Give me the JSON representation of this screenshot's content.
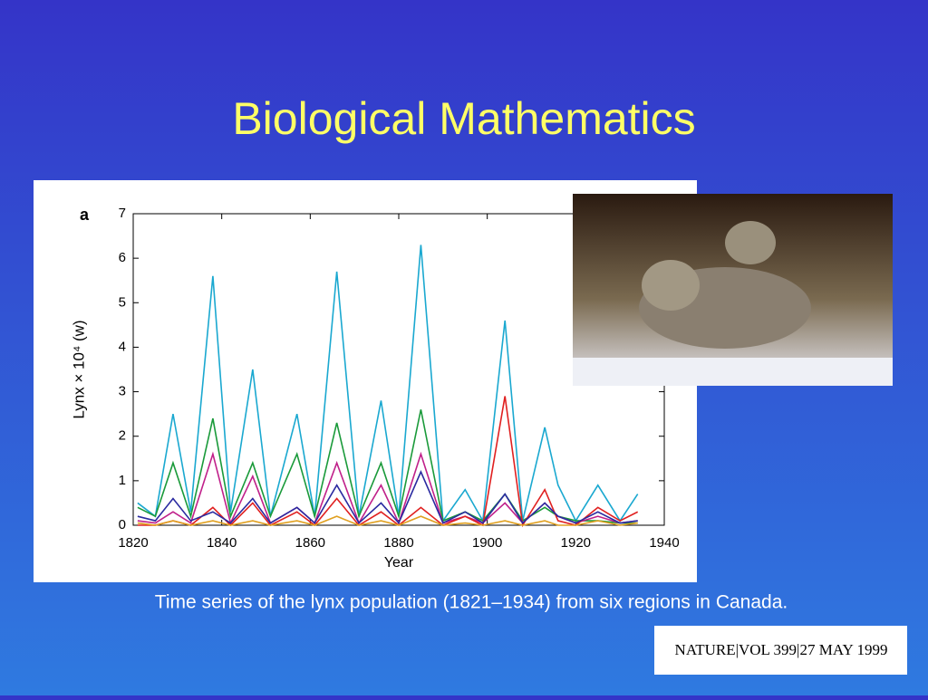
{
  "title": "Biological Mathematics",
  "chart_data": {
    "type": "line",
    "panel_label": "a",
    "y_label": "Lynx × 10⁴ (w)",
    "x_label": "Year",
    "x": [
      1821,
      1825,
      1829,
      1833,
      1838,
      1842,
      1847,
      1851,
      1857,
      1861,
      1866,
      1871,
      1876,
      1880,
      1885,
      1890,
      1895,
      1899,
      1904,
      1908,
      1913,
      1916,
      1920,
      1925,
      1930,
      1934
    ],
    "series": [
      {
        "color": "#1aa8d0",
        "values": [
          0.5,
          0.2,
          2.5,
          0.3,
          5.6,
          0.3,
          3.5,
          0.2,
          2.5,
          0.2,
          5.7,
          0.2,
          2.8,
          0.2,
          6.3,
          0.1,
          0.8,
          0.1,
          4.6,
          0.1,
          2.2,
          0.9,
          0.1,
          0.9,
          0.1,
          0.7
        ]
      },
      {
        "color": "#1a9a3a",
        "values": [
          0.4,
          0.2,
          1.4,
          0.2,
          2.4,
          0.2,
          1.4,
          0.2,
          1.6,
          0.2,
          2.3,
          0.2,
          1.4,
          0.2,
          2.6,
          0.1,
          0.3,
          0.1,
          0.7,
          0.1,
          0.4,
          0.2,
          0.1,
          0.1,
          0.05,
          0.05
        ]
      },
      {
        "color": "#c0208a",
        "values": [
          0.1,
          0.05,
          0.3,
          0.05,
          1.6,
          0.05,
          1.1,
          0.05,
          0.4,
          0.05,
          1.4,
          0.05,
          0.9,
          0.05,
          1.6,
          0.05,
          0.2,
          0.05,
          0.5,
          0.05,
          0.5,
          0.2,
          0.05,
          0.2,
          0.05,
          0.1
        ]
      },
      {
        "color": "#e02020",
        "values": [
          0,
          0,
          0.1,
          0,
          0.4,
          0,
          0.5,
          0,
          0.3,
          0,
          0.6,
          0,
          0.3,
          0,
          0.4,
          0,
          0.2,
          0,
          2.9,
          0,
          0.8,
          0.1,
          0,
          0.4,
          0.1,
          0.3
        ]
      },
      {
        "color": "#2a2aa0",
        "values": [
          0.2,
          0.1,
          0.6,
          0.1,
          0.3,
          0.05,
          0.6,
          0.05,
          0.4,
          0.05,
          0.9,
          0.05,
          0.5,
          0.05,
          1.2,
          0.05,
          0.3,
          0.05,
          0.7,
          0.05,
          0.5,
          0.2,
          0.05,
          0.3,
          0.05,
          0.1
        ]
      },
      {
        "color": "#e0a020",
        "values": [
          0.05,
          0,
          0.1,
          0,
          0.1,
          0,
          0.1,
          0,
          0.1,
          0,
          0.2,
          0,
          0.1,
          0,
          0.2,
          0,
          0.05,
          0,
          0.1,
          0,
          0.1,
          0,
          0,
          0.1,
          0,
          0.05
        ]
      }
    ],
    "xlim": [
      1820,
      1940
    ],
    "xticks": [
      1820,
      1840,
      1860,
      1880,
      1900,
      1920,
      1940
    ],
    "ylim": [
      0,
      7
    ],
    "yticks": [
      0,
      1,
      2,
      3,
      4,
      5,
      6,
      7
    ]
  },
  "caption": "Time series of the lynx population (1821–1934) from six regions in Canada.",
  "citation": "NATURE|VOL 399|27 MAY 1999"
}
